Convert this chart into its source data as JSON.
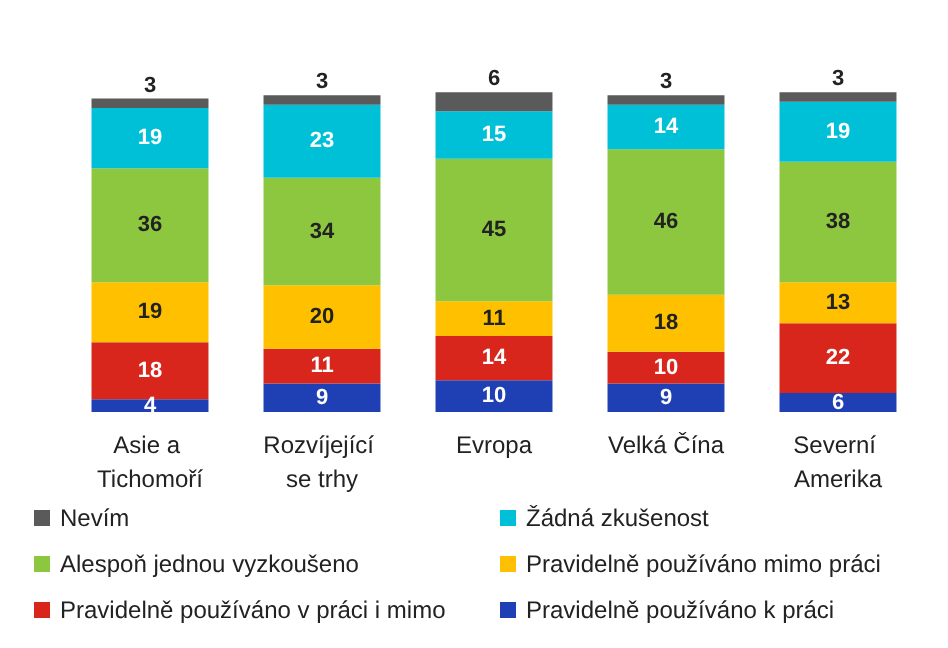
{
  "chart_data": {
    "type": "bar",
    "stacked": true,
    "data_labels": true,
    "legend": "bottom",
    "categories": [
      "Asie a Tichomoří",
      "Rozvíjející se trhy",
      "Evropa",
      "Velká Čína",
      "Severní Amerika"
    ],
    "series": [
      {
        "name": "Pravidelně používáno k práci",
        "color": "#1f3fb4",
        "values": [
          4,
          9,
          10,
          9,
          6
        ]
      },
      {
        "name": "Pravidelně používáno v práci i mimo",
        "color": "#d9261c",
        "values": [
          18,
          11,
          14,
          10,
          22
        ]
      },
      {
        "name": "Pravidelně používáno mimo práci",
        "color": "#ffc000",
        "values": [
          19,
          20,
          11,
          18,
          13
        ]
      },
      {
        "name": "Alespoň jednou vyzkoušeno",
        "color": "#8dc63f",
        "values": [
          36,
          34,
          45,
          46,
          38
        ]
      },
      {
        "name": "Žádná zkušenost",
        "color": "#00c0d8",
        "values": [
          19,
          23,
          15,
          14,
          19
        ]
      },
      {
        "name": "Nevím",
        "color": "#5a5a5a",
        "values": [
          3,
          3,
          6,
          3,
          3
        ]
      }
    ]
  }
}
